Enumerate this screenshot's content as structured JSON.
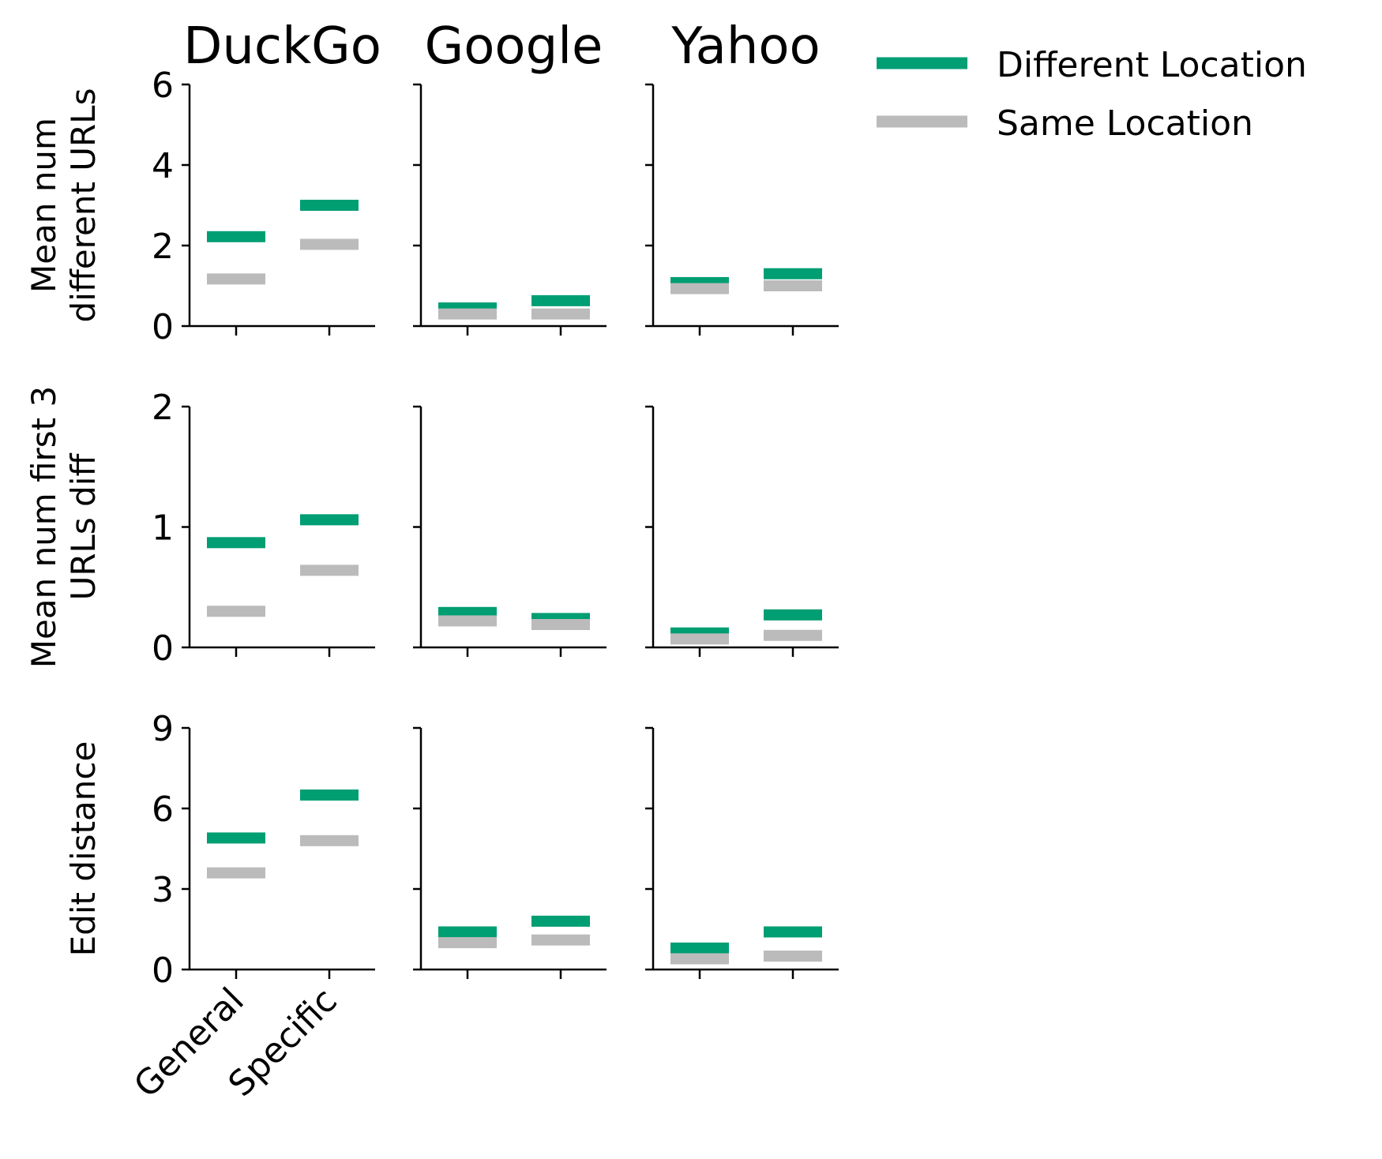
{
  "colors": {
    "different": "#009e73",
    "same": "#bbbbbb"
  },
  "legend": {
    "placement": "top-right",
    "items": [
      "Different Location",
      "Same Location"
    ]
  },
  "chart_data": {
    "type": "bar",
    "columns": [
      "DuckGo",
      "Google",
      "Yahoo"
    ],
    "categories": [
      "General",
      "Specific"
    ],
    "series_names": [
      "Different Location",
      "Same Location"
    ],
    "rows": [
      {
        "ylabel": [
          "Mean num",
          "different URLs"
        ],
        "ylim": [
          0,
          6
        ],
        "yticks": [
          0,
          2,
          4,
          6
        ],
        "panels": [
          {
            "engine": "DuckGo",
            "different": [
              2.22,
              3.0
            ],
            "same": [
              1.17,
              2.03
            ]
          },
          {
            "engine": "Google",
            "different": [
              0.45,
              0.63
            ],
            "same": [
              0.3,
              0.3
            ]
          },
          {
            "engine": "Yahoo",
            "different": [
              1.08,
              1.3
            ],
            "same": [
              0.93,
              1.0
            ]
          }
        ]
      },
      {
        "ylabel": [
          "Mean num first 3",
          "URLs diff"
        ],
        "ylim": [
          0,
          2
        ],
        "yticks": [
          0,
          1,
          2
        ],
        "panels": [
          {
            "engine": "DuckGo",
            "different": [
              0.87,
              1.06
            ],
            "same": [
              0.3,
              0.64
            ]
          },
          {
            "engine": "Google",
            "different": [
              0.29,
              0.24
            ],
            "same": [
              0.22,
              0.19
            ]
          },
          {
            "engine": "Yahoo",
            "different": [
              0.12,
              0.27
            ],
            "same": [
              0.07,
              0.1
            ]
          }
        ]
      },
      {
        "ylabel": [
          "Edit distance"
        ],
        "ylim": [
          0,
          9
        ],
        "yticks": [
          0,
          3,
          6,
          9
        ],
        "panels": [
          {
            "engine": "DuckGo",
            "different": [
              4.9,
              6.5
            ],
            "same": [
              3.6,
              4.8
            ]
          },
          {
            "engine": "Google",
            "different": [
              1.4,
              1.8
            ],
            "same": [
              1.0,
              1.1
            ]
          },
          {
            "engine": "Yahoo",
            "different": [
              0.8,
              1.4
            ],
            "same": [
              0.4,
              0.5
            ]
          }
        ]
      }
    ],
    "grid": false
  }
}
